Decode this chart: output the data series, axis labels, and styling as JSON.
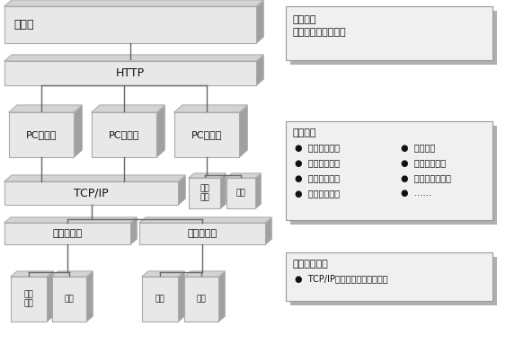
{
  "bg_color": "#ffffff",
  "box_face": "#e8e8e8",
  "box_edge": "#aaaaaa",
  "shadow_color": "#a0a0a0",
  "top_face": "#d4d4d4",
  "font_color": "#111111",
  "left_panel": {
    "server_label": "服务端",
    "http_label": "HTTP",
    "pc_label": "PC客户端",
    "tcpip_label": "TCP/IP",
    "forward_label": "转发中间件",
    "terminal_label": "终端\n设备",
    "device_label": "仪器"
  },
  "right_panel": {
    "server_box": {
      "title": "服务器：",
      "lines": [
        "测试数据存储与查询"
      ]
    },
    "client_box": {
      "title": "客户端：",
      "col1": [
        "传输协议定义",
        "物理接口定义",
        "测试流程定义",
        "产品遥测遥控"
      ],
      "col2": [
        "仪器监控",
        "测试报告生成",
        "数据上传与下载",
        "……"
      ]
    },
    "forward_box": {
      "title": "转发中间件：",
      "lines": [
        "TCP/IP与设备接口的数据中转"
      ]
    }
  },
  "line_color": "#666666",
  "line_lw": 1.0
}
